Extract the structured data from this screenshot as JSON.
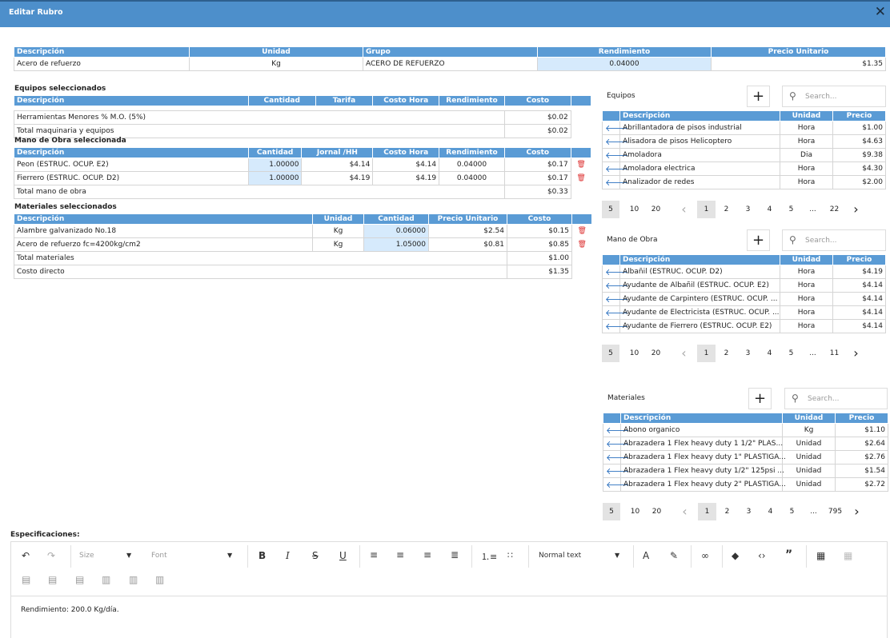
{
  "dialog": {
    "title": "Editar Rubro",
    "close": "✕"
  },
  "rubro": {
    "headers": [
      "Descripción",
      "Unidad",
      "Grupo",
      "Rendimiento",
      "Precio Unitario"
    ],
    "row": [
      "Acero de refuerzo",
      "Kg",
      "ACERO DE REFUERZO",
      "0.04000",
      "$1.35"
    ]
  },
  "equipos_sel": {
    "title": "Equipos seleccionados",
    "headers": [
      "Descripción",
      "Cantidad",
      "Tarifa",
      "Costo Hora",
      "Rendimiento",
      "Costo"
    ],
    "rows": [
      {
        "desc": "Herramientas Menores % M.O. (5%)",
        "costo": "$0.02"
      }
    ],
    "total_label": "Total maquinaria y equipos",
    "total": "$0.02"
  },
  "mano_sel": {
    "title": "Mano de Obra seleccionada",
    "headers": [
      "Descripción",
      "Cantidad",
      "Jornal /HH",
      "Costo Hora",
      "Rendimiento",
      "Costo"
    ],
    "rows": [
      [
        "Peon (ESTRUC. OCUP. E2)",
        "1.00000",
        "$4.14",
        "$4.14",
        "0.04000",
        "$0.17"
      ],
      [
        "Fierrero (ESTRUC. OCUP. D2)",
        "1.00000",
        "$4.19",
        "$4.19",
        "0.04000",
        "$0.17"
      ]
    ],
    "total_label": "Total mano de obra",
    "total": "$0.33"
  },
  "mat_sel": {
    "title": "Materiales seleccionados",
    "headers": [
      "Descripción",
      "Unidad",
      "Cantidad",
      "Precio Unitario",
      "Costo"
    ],
    "rows": [
      [
        "Alambre galvanizado No.18",
        "Kg",
        "0.06000",
        "$2.54",
        "$0.15"
      ],
      [
        "Acero de refuerzo fc=4200kg/cm2",
        "Kg",
        "1.05000",
        "$0.81",
        "$0.85"
      ]
    ],
    "total_label": "Total materiales",
    "total": "$1.00",
    "directo_label": "Costo directo",
    "directo": "$1.35"
  },
  "panels": {
    "equipos": {
      "label": "Equipos",
      "search": "Search...",
      "headers": [
        "Descripción",
        "Unidad",
        "Precio"
      ],
      "rows": [
        [
          "Abrillantadora de pisos industrial",
          "Hora",
          "$1.00"
        ],
        [
          "Alisadora de pisos Helicoptero",
          "Hora",
          "$4.63"
        ],
        [
          "Amoladora",
          "Dia",
          "$9.38"
        ],
        [
          "Amoladora electrica",
          "Hora",
          "$4.30"
        ],
        [
          "Analizador de redes",
          "Hora",
          "$2.00"
        ]
      ],
      "pager": {
        "sizes": [
          "5",
          "10",
          "20"
        ],
        "pages": [
          "1",
          "2",
          "3",
          "4",
          "5"
        ],
        "ellipsis": "...",
        "last": "22"
      }
    },
    "mano": {
      "label": "Mano de Obra",
      "search": "Search...",
      "headers": [
        "Descripción",
        "Unidad",
        "Precio"
      ],
      "rows": [
        [
          "Albañil (ESTRUC. OCUP. D2)",
          "Hora",
          "$4.19"
        ],
        [
          "Ayudante de Albañil (ESTRUC. OCUP. E2)",
          "Hora",
          "$4.14"
        ],
        [
          "Ayudante de Carpintero (ESTRUC. OCUP. ...",
          "Hora",
          "$4.14"
        ],
        [
          "Ayudante de Electricista (ESTRUC. OCUP. ...",
          "Hora",
          "$4.14"
        ],
        [
          "Ayudante de Fierrero (ESTRUC. OCUP. E2)",
          "Hora",
          "$4.14"
        ]
      ],
      "pager": {
        "sizes": [
          "5",
          "10",
          "20"
        ],
        "pages": [
          "1",
          "2",
          "3",
          "4",
          "5"
        ],
        "ellipsis": "...",
        "last": "11"
      }
    },
    "materiales": {
      "label": "Materiales",
      "search": "Search...",
      "headers": [
        "Descripción",
        "Unidad",
        "Precio"
      ],
      "rows": [
        [
          "Abono organico",
          "Kg",
          "$1.10"
        ],
        [
          "Abrazadera 1 Flex heavy duty 1 1/2\" PLAS...",
          "Unidad",
          "$2.64"
        ],
        [
          "Abrazadera 1 Flex heavy duty 1\" PLASTIGA...",
          "Unidad",
          "$2.76"
        ],
        [
          "Abrazadera 1 Flex heavy duty 1/2\" 125psi ...",
          "Unidad",
          "$1.54"
        ],
        [
          "Abrazadera 1 Flex heavy duty 2\" PLASTIGA...",
          "Unidad",
          "$2.72"
        ]
      ],
      "pager": {
        "sizes": [
          "5",
          "10",
          "20"
        ],
        "pages": [
          "1",
          "2",
          "3",
          "4",
          "5"
        ],
        "ellipsis": "...",
        "last": "795"
      }
    }
  },
  "especificaciones": {
    "title": "Especificaciones:",
    "size_placeholder": "Size",
    "font_placeholder": "Font",
    "format": "Normal text",
    "content": "Rendimiento: 200.0 Kg/día."
  }
}
